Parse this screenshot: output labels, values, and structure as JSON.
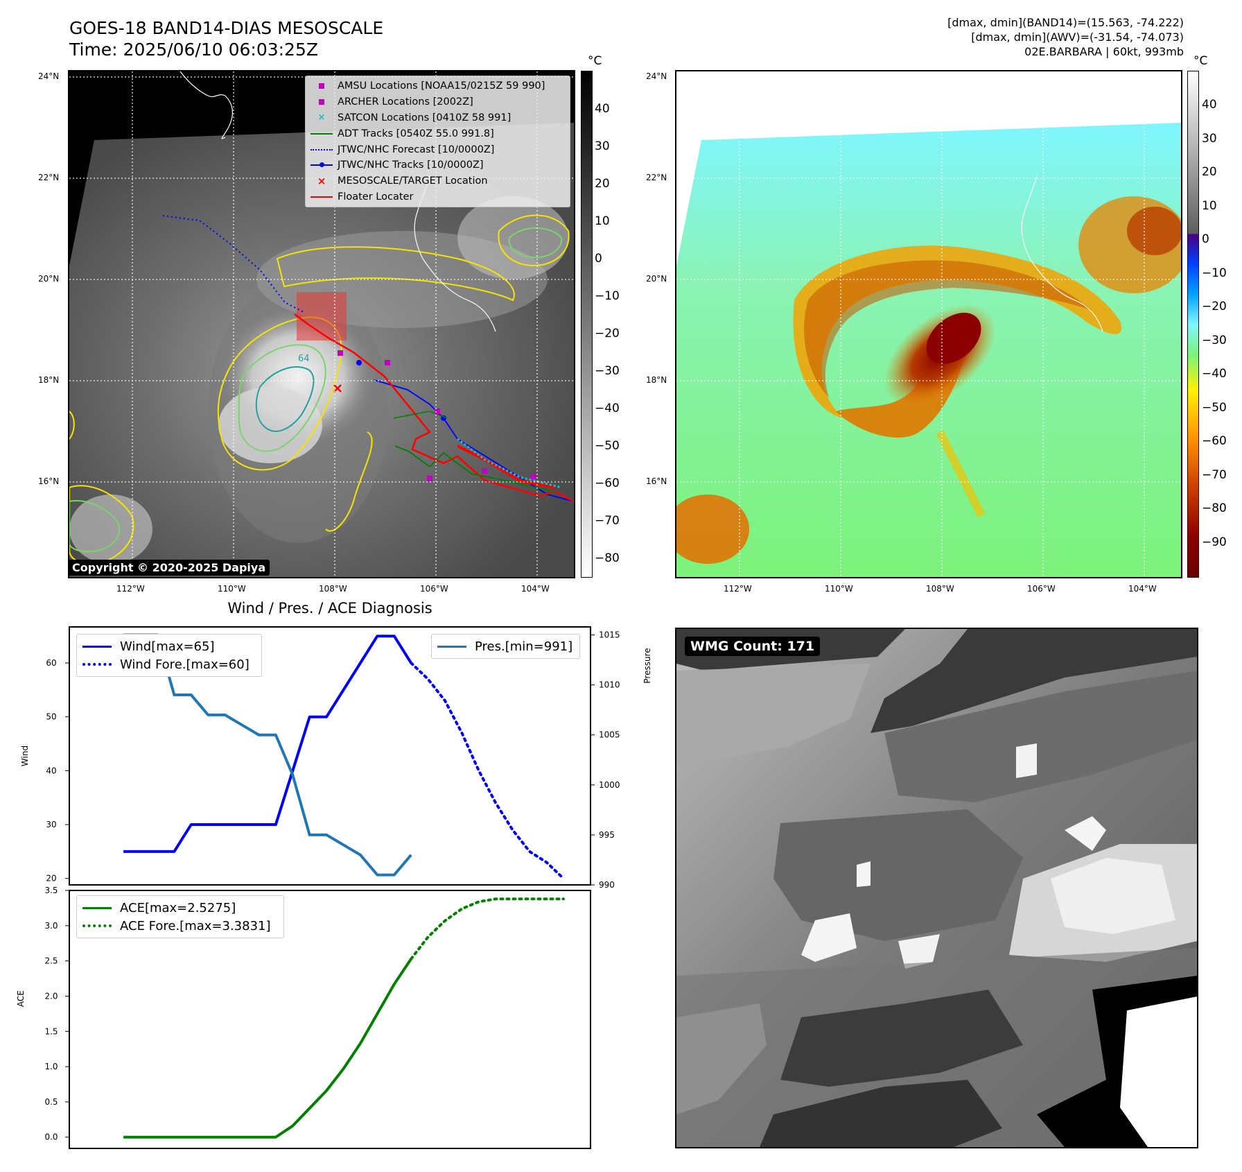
{
  "header": {
    "title_line1": "GOES-18 BAND14-DIAS MESOSCALE",
    "title_line2": "Time: 2025/06/10 06:03:25Z",
    "info_line1": "[dmax, dmin](BAND14)=(15.563, -74.222)",
    "info_line2": "[dmax, dmin](AWV)=(-31.54, -74.073)",
    "info_line3": "02E.BARBARA | 60kt, 993mb"
  },
  "map_axes": {
    "lat_labels": [
      "24°N",
      "22°N",
      "20°N",
      "18°N",
      "16°N"
    ],
    "lon_labels": [
      "112°W",
      "110°W",
      "108°W",
      "106°W",
      "104°W"
    ]
  },
  "colorbar_ir": {
    "unit": "°C",
    "ticks": [
      "40",
      "30",
      "20",
      "10",
      "0",
      "−10",
      "−20",
      "−30",
      "−40",
      "−50",
      "−60",
      "−70",
      "−80"
    ]
  },
  "colorbar_awv": {
    "unit": "°C",
    "ticks": [
      "40",
      "30",
      "20",
      "10",
      "0",
      "−10",
      "−20",
      "−30",
      "−40",
      "−50",
      "−60",
      "−70",
      "−80",
      "−90"
    ]
  },
  "map_legend": {
    "items": [
      {
        "label": "AMSU Locations [NOAA15/0215Z 59 990]",
        "color": "#bf00bf",
        "marker": "square"
      },
      {
        "label": "ARCHER Locations [2002Z]",
        "color": "#bf00bf",
        "marker": "square"
      },
      {
        "label": "SATCON Locations [0410Z 58 991]",
        "color": "#17becf",
        "marker": "x"
      },
      {
        "label": "ADT Tracks [0540Z 55.0 991.8]",
        "color": "#008000",
        "marker": "line"
      },
      {
        "label": "JTWC/NHC Forecast [10/0000Z]",
        "color": "#0000ff",
        "marker": "dotted"
      },
      {
        "label": "JTWC/NHC Tracks [10/0000Z]",
        "color": "#0000ff",
        "marker": "line-dot"
      },
      {
        "label": "MESOSCALE/TARGET Location",
        "color": "#ff0000",
        "marker": "x"
      },
      {
        "label": "Floater Locater",
        "color": "#ff0000",
        "marker": "line"
      }
    ]
  },
  "copyright": "Copyright © 2020-2025 Dapiya",
  "wmg_label": "WMG Count: 171",
  "contour_label": "64",
  "chart_data": [
    {
      "type": "line",
      "title": "Wind / Pres. / ACE Diagnosis",
      "ylabel": "Wind",
      "ylabel_right": "Pressure",
      "ylim": [
        18.8,
        66.7
      ],
      "ylim_right": [
        990,
        1015.8
      ],
      "yticks": [
        20,
        30,
        40,
        50,
        60
      ],
      "yticks_right": [
        990,
        995,
        1000,
        1005,
        1010,
        1015
      ],
      "x": [
        0,
        3,
        4,
        5,
        6,
        7,
        8,
        9,
        10,
        11,
        12,
        13,
        14,
        15,
        16,
        17,
        18,
        19,
        20,
        21,
        22,
        23,
        24,
        25,
        26
      ],
      "series": [
        {
          "name": "Wind[max=65]",
          "style": "solid",
          "color": "#0000ff",
          "x": [
            0,
            3,
            4,
            5,
            6,
            7,
            8,
            9,
            10,
            11,
            12,
            13,
            14,
            15,
            16,
            17
          ],
          "values": [
            25,
            25,
            30,
            30,
            30,
            30,
            30,
            30,
            40,
            50,
            50,
            55,
            60,
            65,
            65,
            60
          ]
        },
        {
          "name": "Wind Fore.[max=60]",
          "style": "dotted",
          "color": "#0000ff",
          "x": [
            17,
            18,
            19,
            20,
            21,
            22,
            23,
            24,
            25,
            26
          ],
          "values": [
            60,
            57,
            53,
            47,
            40,
            34,
            29,
            25,
            23,
            20
          ]
        },
        {
          "name": "Pres.[min=991]",
          "style": "solid",
          "color": "#1f77b4",
          "axis": "right",
          "x": [
            0,
            1,
            2,
            3,
            4,
            5,
            6,
            7,
            8,
            9,
            10,
            11,
            12,
            13,
            14,
            15,
            16,
            17
          ],
          "values": [
            1015,
            1015,
            1015,
            1009,
            1009,
            1007,
            1007,
            1006,
            1005,
            1005,
            1001,
            995,
            995,
            994,
            993,
            991,
            991,
            993
          ]
        }
      ]
    },
    {
      "type": "line",
      "ylabel": "ACE",
      "ylim": [
        -0.16,
        3.5
      ],
      "yticks": [
        0.0,
        0.5,
        1.0,
        1.5,
        2.0,
        2.5,
        3.0,
        3.5
      ],
      "series": [
        {
          "name": "ACE[max=2.5275]",
          "style": "solid",
          "color": "#008000",
          "x": [
            0,
            9,
            10,
            11,
            12,
            13,
            14,
            15,
            16,
            17
          ],
          "values": [
            0,
            0,
            0.16,
            0.41,
            0.66,
            0.97,
            1.33,
            1.75,
            2.17,
            2.53
          ]
        },
        {
          "name": "ACE Fore.[max=3.3831]",
          "style": "dotted",
          "color": "#008000",
          "x": [
            17,
            18,
            19,
            20,
            21,
            22,
            23,
            24,
            25,
            26
          ],
          "values": [
            2.53,
            2.84,
            3.07,
            3.24,
            3.34,
            3.38,
            3.38,
            3.38,
            3.38,
            3.38
          ]
        }
      ]
    }
  ]
}
